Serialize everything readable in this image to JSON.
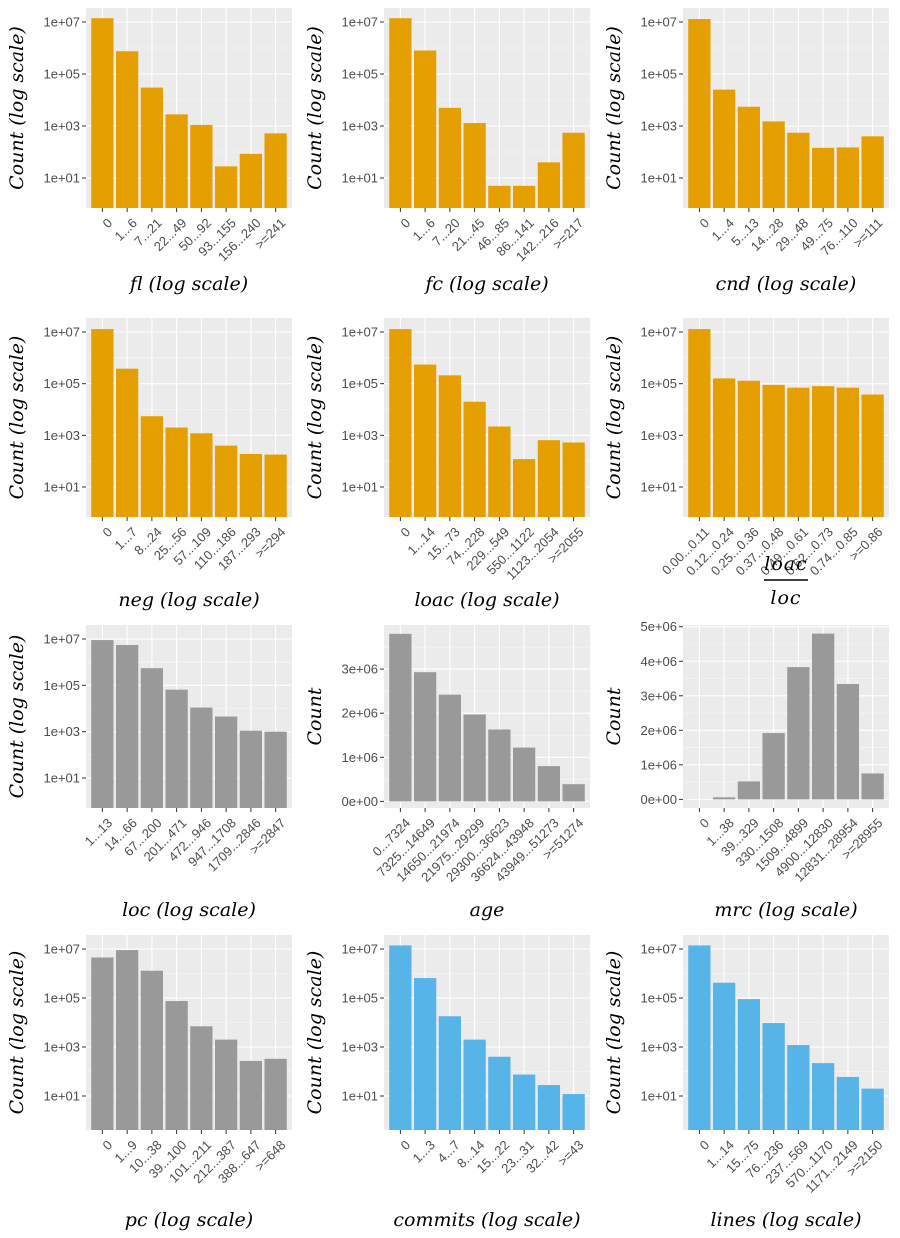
{
  "colors": {
    "orange": "#E69F00",
    "gray": "#999999",
    "blue": "#56B4E9",
    "panel": "#EBEBEB",
    "grid_major": "#FFFFFF"
  },
  "chart_data": [
    {
      "type": "bar",
      "scale": "log",
      "color": "orange",
      "xlabel": "fl (log scale)",
      "ylabel": "Count (log scale)",
      "yticks": [
        "1e+01",
        "1e+03",
        "1e+05",
        "1e+07"
      ],
      "ylim_log10": [
        -0.3,
        7.5
      ],
      "categories": [
        "0",
        "1...6",
        "7...21",
        "22...49",
        "50...92",
        "93...155",
        "156...240",
        ">=241"
      ],
      "values": [
        14000000,
        750000,
        30000,
        2800,
        1100,
        28,
        85,
        520
      ]
    },
    {
      "type": "bar",
      "scale": "log",
      "color": "orange",
      "xlabel": "fc (log scale)",
      "ylabel": "Count (log scale)",
      "yticks": [
        "1e+01",
        "1e+03",
        "1e+05",
        "1e+07"
      ],
      "ylim_log10": [
        -0.3,
        7.5
      ],
      "categories": [
        "0",
        "1...6",
        "7...20",
        "21...45",
        "46...85",
        "86...141",
        "142...216",
        ">=217"
      ],
      "values": [
        14000000,
        800000,
        5000,
        1300,
        5,
        5,
        40,
        550
      ]
    },
    {
      "type": "bar",
      "scale": "log",
      "color": "orange",
      "xlabel": "cnd (log scale)",
      "ylabel": "Count (log scale)",
      "yticks": [
        "1e+01",
        "1e+03",
        "1e+05",
        "1e+07"
      ],
      "ylim_log10": [
        -0.3,
        7.5
      ],
      "categories": [
        "0",
        "1...4",
        "5...13",
        "14...28",
        "29...48",
        "49...75",
        "76...110",
        ">=111"
      ],
      "values": [
        13000000,
        25000,
        5500,
        1500,
        550,
        145,
        150,
        400
      ]
    },
    {
      "type": "bar",
      "scale": "log",
      "color": "orange",
      "xlabel": "neg (log scale)",
      "ylabel": "Count (log scale)",
      "yticks": [
        "1e+01",
        "1e+03",
        "1e+05",
        "1e+07"
      ],
      "ylim_log10": [
        -0.3,
        7.5
      ],
      "categories": [
        "0",
        "1...7",
        "8...24",
        "25...56",
        "57...109",
        "110...186",
        "187...293",
        ">=294"
      ],
      "values": [
        13000000,
        380000,
        5500,
        2000,
        1200,
        400,
        190,
        180
      ]
    },
    {
      "type": "bar",
      "scale": "log",
      "color": "orange",
      "xlabel": "loac (log scale)",
      "ylabel": "Count (log scale)",
      "yticks": [
        "1e+01",
        "1e+03",
        "1e+05",
        "1e+07"
      ],
      "ylim_log10": [
        -0.3,
        7.5
      ],
      "categories": [
        "0",
        "1...14",
        "15...73",
        "74...228",
        "229...549",
        "550...1122",
        "1123...2054",
        ">=2055"
      ],
      "values": [
        13000000,
        550000,
        210000,
        20000,
        2200,
        120,
        650,
        530
      ]
    },
    {
      "type": "bar",
      "scale": "log",
      "color": "orange",
      "xlabel_fraction": {
        "numerator": "loac",
        "denominator": "loc"
      },
      "ylabel": "Count (log scale)",
      "yticks": [
        "1e+01",
        "1e+03",
        "1e+05",
        "1e+07"
      ],
      "ylim_log10": [
        -0.3,
        7.5
      ],
      "categories": [
        "0.00...0.11",
        "0.12...0.24",
        "0.25...0.36",
        "0.37...0.48",
        "0.49...0.61",
        "0.62...0.73",
        "0.74...0.85",
        ">=0.86"
      ],
      "values": [
        13000000,
        160000,
        130000,
        90000,
        70000,
        80000,
        70000,
        38000
      ]
    },
    {
      "type": "bar",
      "scale": "log",
      "color": "gray",
      "xlabel": "loc (log scale)",
      "ylabel": "Count (log scale)",
      "yticks": [
        "1e+01",
        "1e+03",
        "1e+05",
        "1e+07"
      ],
      "ylim_log10": [
        -0.3,
        7.5
      ],
      "categories": [
        "1...13",
        "14...66",
        "67...200",
        "201...471",
        "472...946",
        "947...1708",
        "1709...2846",
        ">=2847"
      ],
      "values": [
        9000000,
        5500000,
        550000,
        65000,
        11000,
        4500,
        1100,
        1000
      ]
    },
    {
      "type": "bar",
      "scale": "linear",
      "color": "gray",
      "xlabel": "age",
      "ylabel": "Count",
      "yticks": [
        "0e+00",
        "1e+06",
        "2e+06",
        "3e+06"
      ],
      "ytick_values": [
        0,
        1000000,
        2000000,
        3000000
      ],
      "ylim": [
        -150000,
        4000000
      ],
      "categories": [
        "0...7324",
        "7325...14649",
        "14650...21974",
        "21975...29299",
        "29300...36623",
        "36624...43948",
        "43949...51273",
        ">=51274"
      ],
      "values": [
        3800000,
        2930000,
        2420000,
        1970000,
        1630000,
        1220000,
        800000,
        390000
      ]
    },
    {
      "type": "bar",
      "scale": "linear",
      "color": "gray",
      "xlabel": "mrc (log scale)",
      "ylabel": "Count",
      "yticks": [
        "0e+00",
        "1e+06",
        "2e+06",
        "3e+06",
        "4e+06",
        "5e+06"
      ],
      "ytick_values": [
        0,
        1000000,
        2000000,
        3000000,
        4000000,
        5000000
      ],
      "ylim": [
        -250000,
        5050000
      ],
      "categories": [
        "0",
        "1...38",
        "39...329",
        "330...1508",
        "1509...4899",
        "4900...12830",
        "12831...28954",
        ">=28955"
      ],
      "values": [
        0,
        60000,
        520000,
        1920000,
        3830000,
        4800000,
        3340000,
        750000
      ]
    },
    {
      "type": "bar",
      "scale": "log",
      "color": "gray",
      "xlabel": "pc (log scale)",
      "ylabel": "Count (log scale)",
      "yticks": [
        "1e+01",
        "1e+03",
        "1e+05",
        "1e+07"
      ],
      "ylim_log10": [
        -0.3,
        7.5
      ],
      "categories": [
        "0",
        "1...9",
        "10...38",
        "39...100",
        "101...211",
        "212...387",
        "388...647",
        ">=648"
      ],
      "values": [
        4500000,
        9000000,
        1300000,
        75000,
        7000,
        2000,
        270,
        330
      ]
    },
    {
      "type": "bar",
      "scale": "log",
      "color": "blue",
      "xlabel": "commits (log scale)",
      "ylabel": "Count (log scale)",
      "yticks": [
        "1e+01",
        "1e+03",
        "1e+05",
        "1e+07"
      ],
      "ylim_log10": [
        -0.3,
        7.5
      ],
      "categories": [
        "0",
        "1...3",
        "4...7",
        "8...14",
        "15...22",
        "23...31",
        "32...42",
        ">=43"
      ],
      "values": [
        14000000,
        650000,
        18000,
        2000,
        400,
        75,
        28,
        12
      ]
    },
    {
      "type": "bar",
      "scale": "log",
      "color": "blue",
      "xlabel": "lines (log scale)",
      "ylabel": "Count (log scale)",
      "yticks": [
        "1e+01",
        "1e+03",
        "1e+05",
        "1e+07"
      ],
      "ylim_log10": [
        -0.3,
        7.5
      ],
      "categories": [
        "0",
        "1...14",
        "15...75",
        "76...236",
        "237...569",
        "570...1170",
        "1171...2149",
        ">=2150"
      ],
      "values": [
        14000000,
        420000,
        90000,
        9500,
        1200,
        220,
        60,
        20
      ]
    }
  ]
}
